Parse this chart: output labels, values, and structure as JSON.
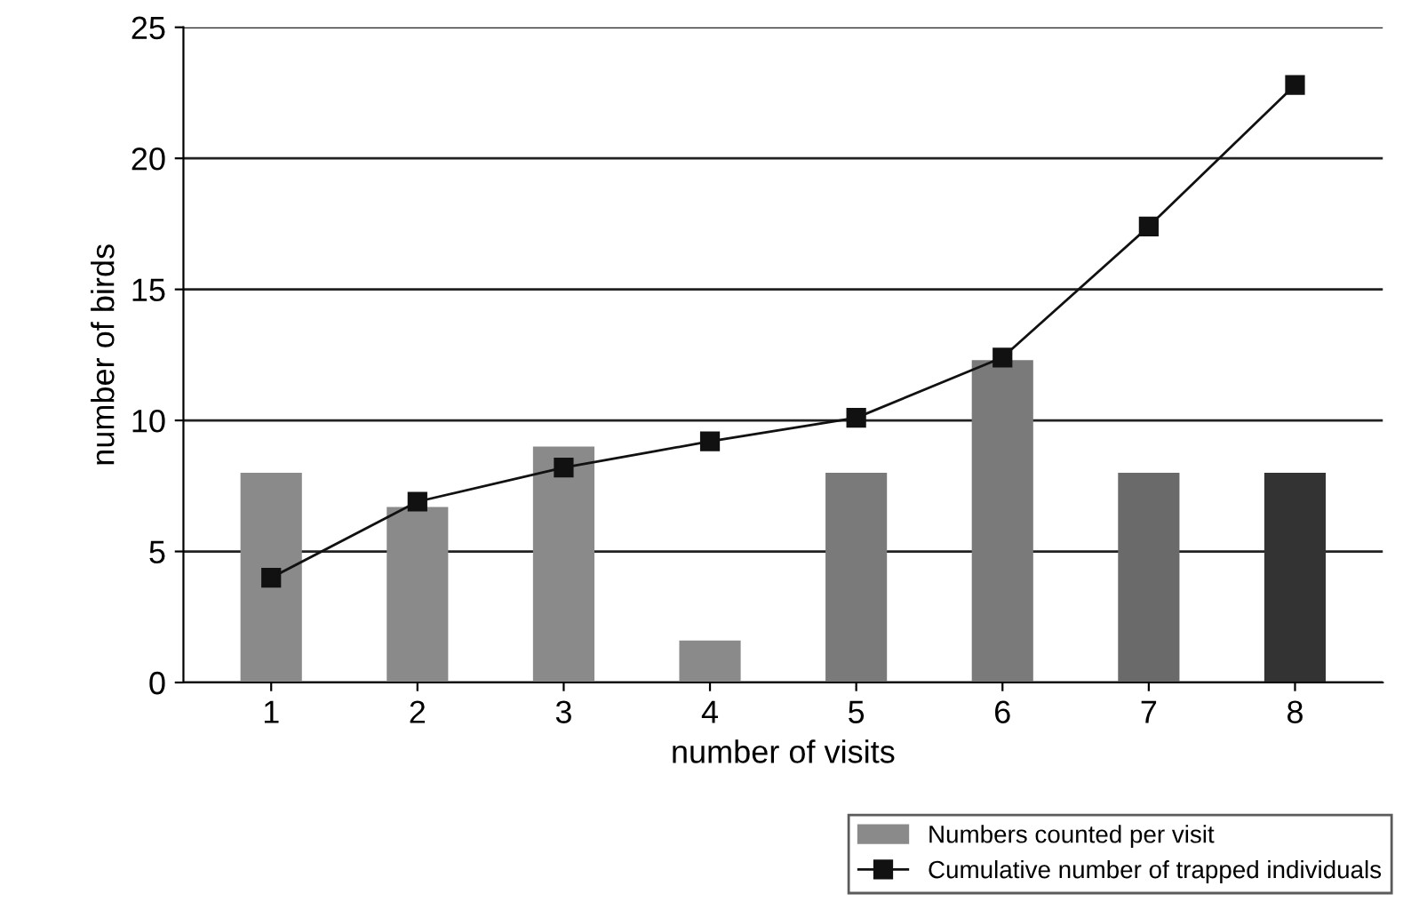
{
  "chart_data": {
    "type": "bar",
    "xlabel": "number of visits",
    "ylabel": "number of birds",
    "categories": [
      "1",
      "2",
      "3",
      "4",
      "5",
      "6",
      "7",
      "8"
    ],
    "series": [
      {
        "name": "Numbers counted per visit",
        "color": "#8a8a8a",
        "colors": [
          "#8a8a8a",
          "#8a8a8a",
          "#8a8a8a",
          "#8a8a8a",
          "#7a7a7a",
          "#7a7a7a",
          "#6a6a6a",
          "#333333"
        ],
        "values": [
          8,
          6.7,
          9,
          1.6,
          8,
          12.3,
          8,
          8
        ]
      },
      {
        "type": "line",
        "name": "Cumulative number of trapped individuals",
        "color": "#111111",
        "marker": "square",
        "line_style": "solid",
        "values": [
          4,
          6.9,
          8.2,
          9.2,
          10.1,
          12.4,
          17.4,
          22.8
        ]
      }
    ],
    "ylim": [
      0,
      25
    ],
    "yticks": [
      0,
      5,
      10,
      15,
      20,
      25
    ],
    "grid": "y",
    "legend": "bottom right"
  }
}
